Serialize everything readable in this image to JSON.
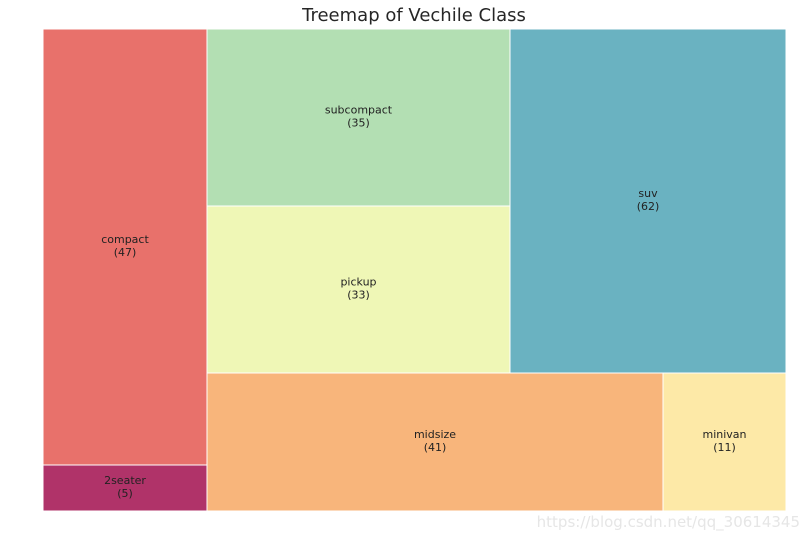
{
  "chart_data": {
    "type": "treemap",
    "title": "Treemap of Vechile Class",
    "items": [
      {
        "label": "compact",
        "value": 47,
        "color": "#e8716b"
      },
      {
        "label": "2seater",
        "value": 5,
        "color": "#b03369"
      },
      {
        "label": "subcompact",
        "value": 35,
        "color": "#b3dfb3"
      },
      {
        "label": "pickup",
        "value": 33,
        "color": "#eff7b6"
      },
      {
        "label": "midsize",
        "value": 41,
        "color": "#f8b57b"
      },
      {
        "label": "suv",
        "value": 62,
        "color": "#6ab2c1"
      },
      {
        "label": "minivan",
        "value": 11,
        "color": "#fde9a7"
      }
    ]
  },
  "watermark": "https://blog.csdn.net/qq_30614345"
}
